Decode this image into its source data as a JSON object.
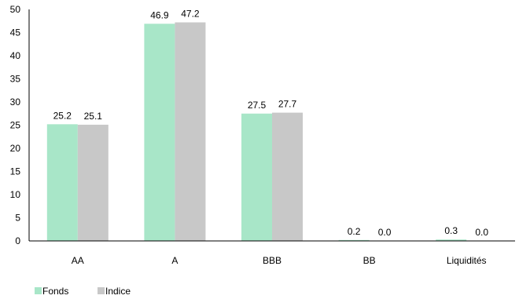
{
  "chart_data": {
    "type": "bar",
    "categories": [
      "AA",
      "A",
      "BBB",
      "BB",
      "Liquidités"
    ],
    "series": [
      {
        "name": "Fonds",
        "values": [
          25.2,
          46.9,
          27.5,
          0.2,
          0.3
        ],
        "labels": [
          "25.2",
          "46.9",
          "27.5",
          "0.2",
          "0.3"
        ],
        "color": "#a8e6c8"
      },
      {
        "name": "Indice",
        "values": [
          25.1,
          47.2,
          27.7,
          0.0,
          0.0
        ],
        "labels": [
          "25.1",
          "47.2",
          "27.7",
          "0.0",
          "0.0"
        ],
        "color": "#c8c8c8"
      }
    ],
    "ylim": [
      0,
      50
    ],
    "yticks": [
      0,
      5,
      10,
      15,
      20,
      25,
      30,
      35,
      40,
      45,
      50
    ],
    "title": "",
    "xlabel": "",
    "ylabel": "",
    "grid": false,
    "legend_position": "bottom-left"
  }
}
